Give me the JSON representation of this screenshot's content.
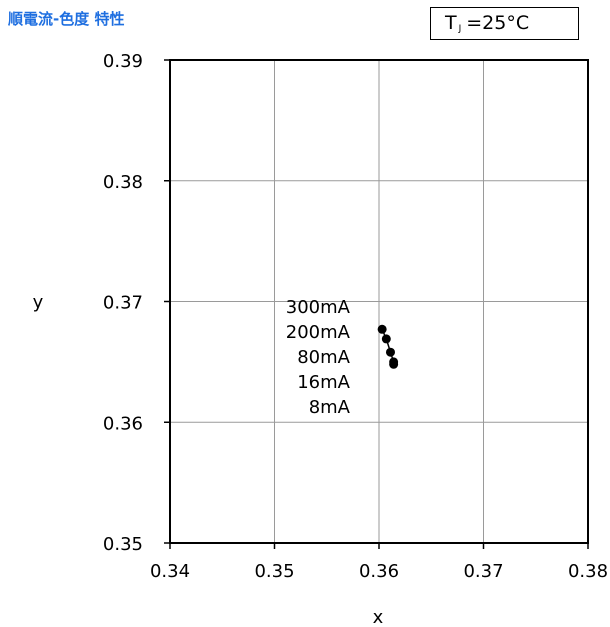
{
  "header": {
    "title": "順電流-色度 特性",
    "condition_main": "T",
    "condition_sub": "J",
    "condition_value": "=25°C"
  },
  "chart_data": {
    "type": "scatter",
    "title": "順電流-色度 特性",
    "xlabel": "x",
    "ylabel": "y",
    "xlim": [
      0.34,
      0.38
    ],
    "ylim": [
      0.35,
      0.39
    ],
    "xticks": [
      "0.34",
      "0.35",
      "0.36",
      "0.37",
      "0.38"
    ],
    "yticks": [
      "0.35",
      "0.36",
      "0.37",
      "0.38",
      "0.39"
    ],
    "grid": true,
    "series": [
      {
        "points": [
          {
            "label": "300mA",
            "x": 0.3603,
            "y": 0.3677
          },
          {
            "label": "200mA",
            "x": 0.3607,
            "y": 0.3669
          },
          {
            "label": "80mA",
            "x": 0.3611,
            "y": 0.3658
          },
          {
            "label": "16mA",
            "x": 0.3614,
            "y": 0.365
          },
          {
            "label": "8mA",
            "x": 0.3614,
            "y": 0.3648
          }
        ]
      }
    ],
    "color": "#000000"
  }
}
